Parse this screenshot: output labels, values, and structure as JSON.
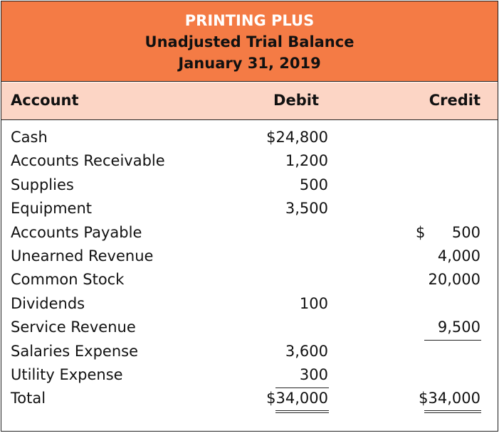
{
  "header": {
    "company": "PRINTING PLUS",
    "statement": "Unadjusted Trial Balance",
    "date": "January 31, 2019"
  },
  "columns": {
    "account": "Account",
    "debit": "Debit",
    "credit": "Credit"
  },
  "rows": [
    {
      "account": "Cash",
      "debit": "$24,800",
      "credit": ""
    },
    {
      "account": "Accounts Receivable",
      "debit": "1,200",
      "credit": ""
    },
    {
      "account": "Supplies",
      "debit": "500",
      "credit": ""
    },
    {
      "account": "Equipment",
      "debit": "3,500",
      "credit": ""
    },
    {
      "account": "Accounts Payable",
      "debit": "",
      "credit_symbol": "$",
      "credit": "500"
    },
    {
      "account": "Unearned Revenue",
      "debit": "",
      "credit": "4,000"
    },
    {
      "account": "Common Stock",
      "debit": "",
      "credit": "20,000"
    },
    {
      "account": "Dividends",
      "debit": "100",
      "credit": ""
    },
    {
      "account": "Service Revenue",
      "debit": "",
      "credit": "9,500"
    },
    {
      "account": "Salaries Expense",
      "debit": "3,600",
      "credit": ""
    },
    {
      "account": "Utility Expense",
      "debit": "300",
      "credit": ""
    },
    {
      "account": "Total",
      "debit": "$34,000",
      "credit": "$34,000"
    }
  ],
  "colors": {
    "title_bg": "#F47B45",
    "header_bg": "#FCD5C5",
    "title_company_text": "#FFFFFF"
  }
}
